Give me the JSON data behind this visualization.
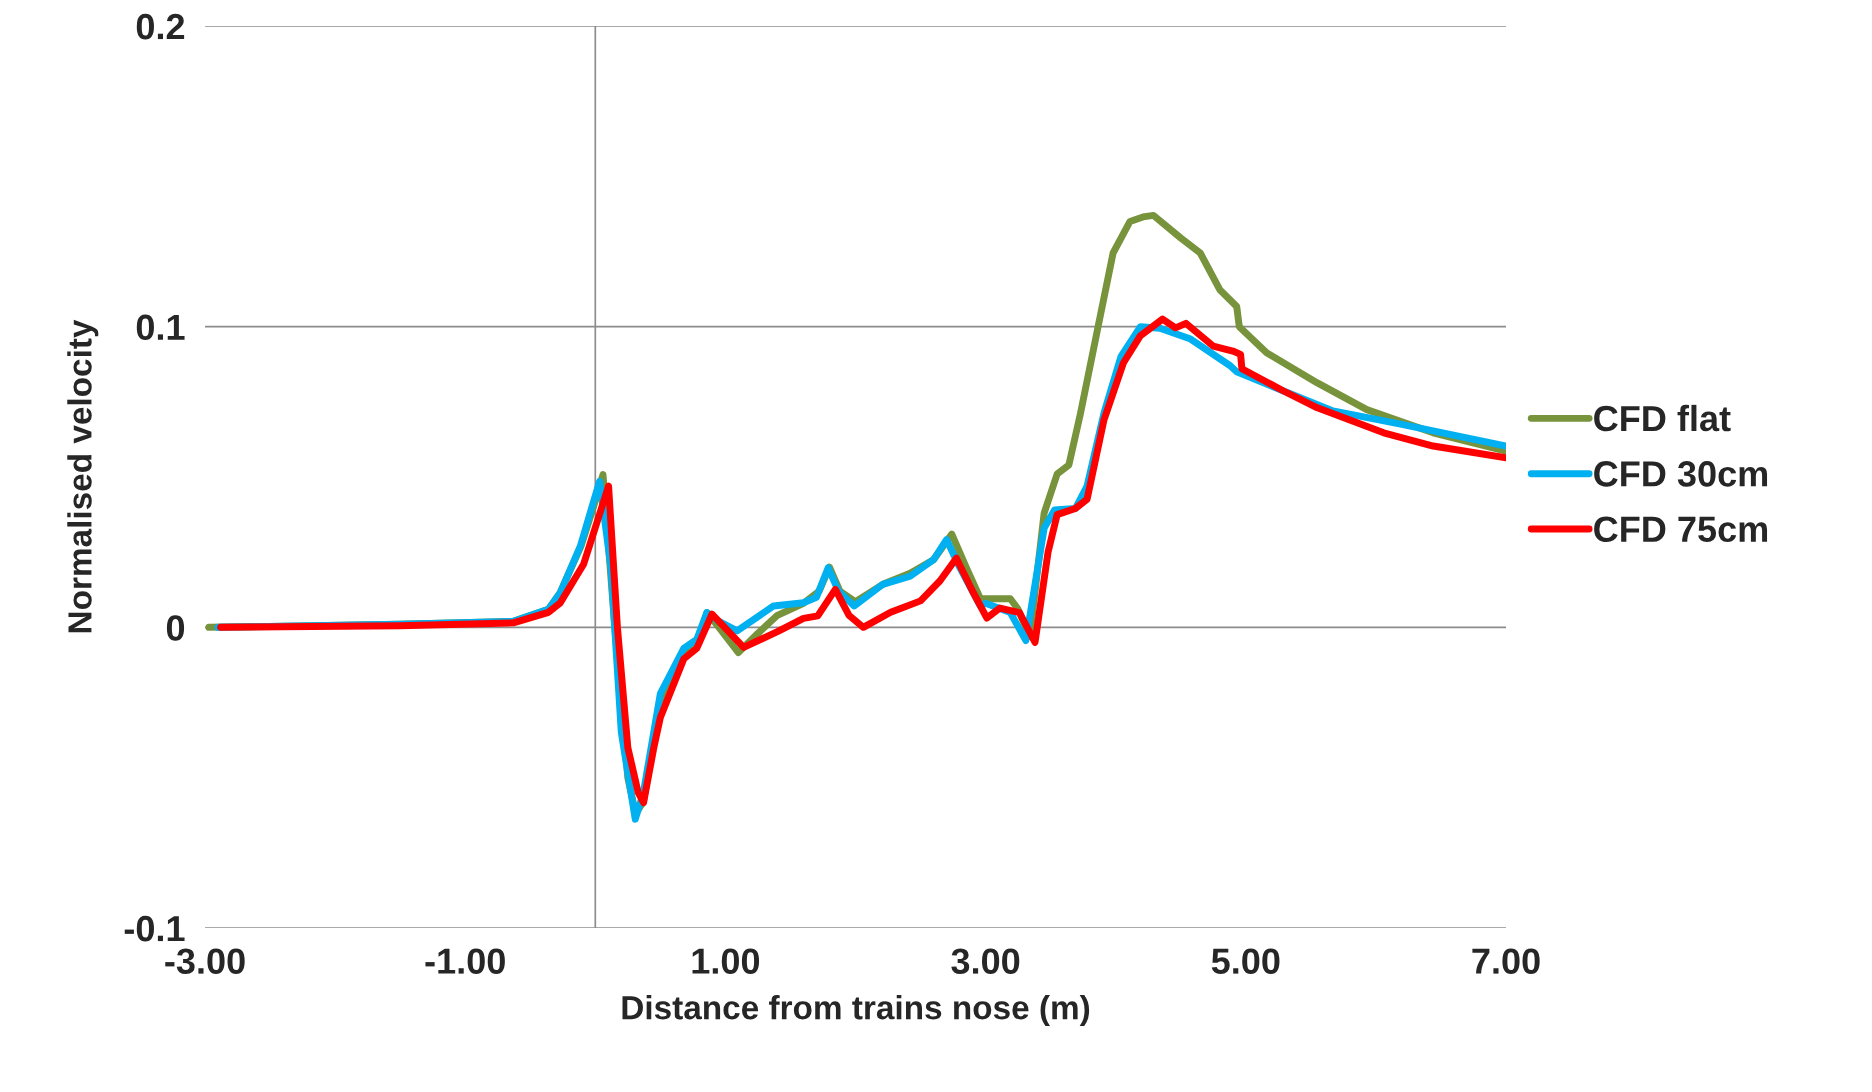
{
  "chart_data": {
    "type": "line",
    "xlabel": "Distance from trains nose (m)",
    "ylabel": "Normalised velocity",
    "xlim": [
      -3,
      7
    ],
    "xticks": [
      {
        "value": -3,
        "label": "-3.00"
      },
      {
        "value": -1,
        "label": "-1.00"
      },
      {
        "value": 1,
        "label": "1.00"
      },
      {
        "value": 3,
        "label": "3.00"
      },
      {
        "value": 5,
        "label": "5.00"
      },
      {
        "value": 7,
        "label": "7.00"
      }
    ],
    "ylim": [
      -0.1,
      0.2
    ],
    "yticks": [
      -0.1,
      0,
      0.1,
      0.2
    ],
    "grid": "y",
    "legend": "right",
    "marker": "none",
    "line_style": "solid",
    "ref_lines": [
      {
        "axis": "x",
        "value": 0,
        "color": "#8c8c8c"
      }
    ],
    "series": [
      {
        "name": "CFD flat",
        "color": "#77933c",
        "x": [
          -2.97,
          -1.5,
          -0.63,
          -0.36,
          -0.27,
          -0.11,
          0.0,
          0.059,
          0.15,
          0.25,
          0.31,
          0.37,
          0.5,
          0.68,
          0.78,
          0.858,
          0.95,
          1.1,
          1.25,
          1.4,
          1.6,
          1.72,
          1.8,
          1.88,
          2.0,
          2.21,
          2.42,
          2.6,
          2.74,
          2.85,
          2.96,
          3.04,
          3.19,
          3.25,
          3.34,
          3.45,
          3.55,
          3.64,
          3.73,
          3.86,
          3.98,
          4.11,
          4.21,
          4.29,
          4.5,
          4.65,
          4.8,
          4.93,
          4.95,
          5.16,
          5.55,
          5.93,
          6.44,
          7.0
        ],
        "values": [
          0,
          0.001,
          0.002,
          0.006,
          0.0115,
          0.027,
          0.042,
          0.0508,
          0.0,
          -0.05,
          -0.062,
          -0.058,
          -0.025,
          -0.008,
          -0.006,
          0.0049,
          0.0,
          -0.0084,
          -0.002,
          0.004,
          0.008,
          0.012,
          0.02,
          0.012,
          0.0085,
          0.0143,
          0.018,
          0.0225,
          0.031,
          0.02,
          0.0095,
          0.0095,
          0.0095,
          0.006,
          -0.003,
          0.038,
          0.051,
          0.054,
          0.0713,
          0.099,
          0.1245,
          0.135,
          0.1365,
          0.137,
          0.1295,
          0.1245,
          0.1123,
          0.1067,
          0.1,
          0.0913,
          0.0813,
          0.0724,
          0.0647,
          0.0586
        ]
      },
      {
        "name": "CFD 30cm",
        "color": "#00b0f0",
        "x": [
          -2.9,
          -1.5,
          -0.63,
          -0.36,
          -0.27,
          -0.115,
          0.033,
          0.12,
          0.2,
          0.307,
          0.37,
          0.5,
          0.68,
          0.78,
          0.858,
          0.95,
          1.09,
          1.37,
          1.6,
          1.7,
          1.79,
          1.87,
          1.99,
          2.21,
          2.42,
          2.6,
          2.7,
          2.8,
          2.96,
          3.0,
          3.19,
          3.31,
          3.45,
          3.53,
          3.69,
          3.78,
          3.91,
          4.04,
          4.19,
          4.34,
          4.57,
          4.88,
          4.93,
          5.29,
          5.67,
          6.19,
          7.0
        ],
        "values": [
          0,
          0.001,
          0.002,
          0.006,
          0.0115,
          0.027,
          0.0486,
          0.02,
          -0.035,
          -0.0638,
          -0.055,
          -0.022,
          -0.007,
          -0.004,
          0.0049,
          0.002,
          -0.0012,
          0.0071,
          0.0082,
          0.01,
          0.0198,
          0.012,
          0.0071,
          0.0143,
          0.017,
          0.0225,
          0.0292,
          0.02,
          0.0071,
          0.008,
          0.0049,
          -0.0044,
          0.033,
          0.039,
          0.0395,
          0.047,
          0.0713,
          0.09,
          0.1,
          0.0995,
          0.096,
          0.087,
          0.085,
          0.0786,
          0.072,
          0.0676,
          0.0603
        ]
      },
      {
        "name": "CFD 75cm",
        "color": "#ff0000",
        "x": [
          -2.88,
          -1.5,
          -0.63,
          -0.36,
          -0.27,
          -0.09,
          0.102,
          0.17,
          0.25,
          0.33,
          0.371,
          0.45,
          0.5,
          0.68,
          0.78,
          0.897,
          0.95,
          1.14,
          1.4,
          1.6,
          1.71,
          1.845,
          1.95,
          2.06,
          2.27,
          2.5,
          2.65,
          2.775,
          2.9,
          3.01,
          3.11,
          3.26,
          3.38,
          3.48,
          3.55,
          3.69,
          3.78,
          3.91,
          4.06,
          4.19,
          4.36,
          4.46,
          4.54,
          4.75,
          4.9,
          4.96,
          4.97,
          5.29,
          5.55,
          6.06,
          6.44,
          7.0
        ],
        "values": [
          0,
          0.0005,
          0.0015,
          0.005,
          0.0081,
          0.021,
          0.047,
          0.0,
          -0.04,
          -0.055,
          -0.0583,
          -0.04,
          -0.03,
          -0.0105,
          -0.007,
          0.0044,
          0.002,
          -0.0067,
          -0.0014,
          0.003,
          0.0038,
          0.0126,
          0.004,
          0.0,
          0.005,
          0.0088,
          0.0155,
          0.023,
          0.012,
          0.0031,
          0.0064,
          0.0049,
          -0.005,
          0.025,
          0.0375,
          0.0395,
          0.0426,
          0.069,
          0.088,
          0.097,
          0.1025,
          0.0996,
          0.1011,
          0.0935,
          0.0919,
          0.0908,
          0.086,
          0.0786,
          0.073,
          0.0647,
          0.0603,
          0.0564
        ]
      }
    ]
  }
}
